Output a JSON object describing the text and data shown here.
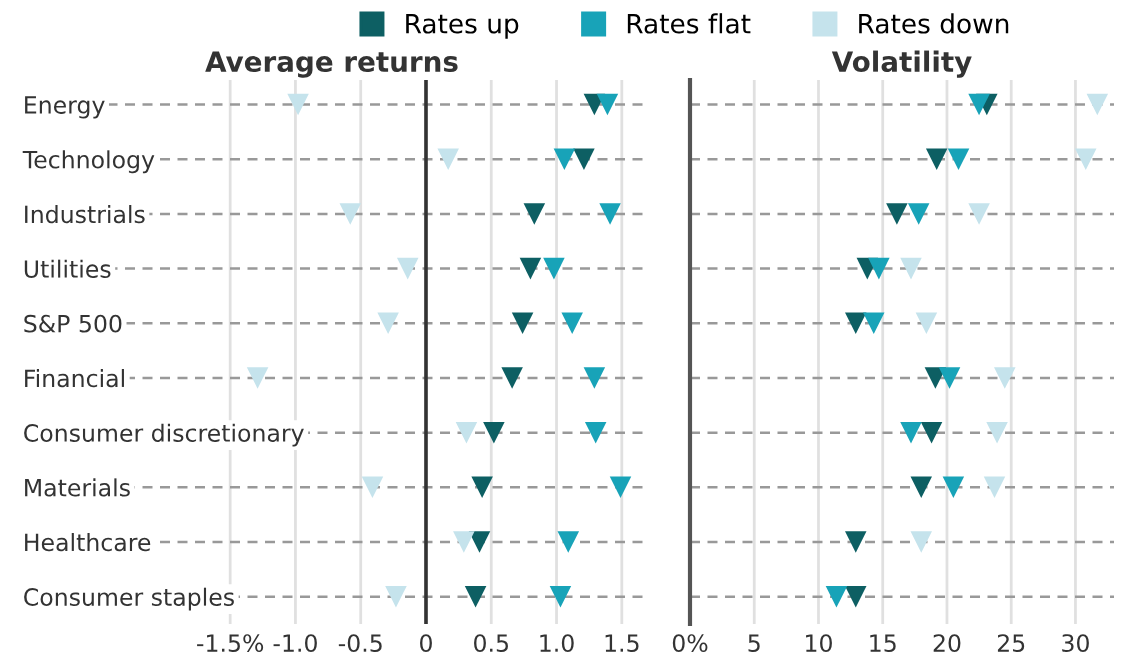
{
  "chart_data": [
    {
      "type": "scatter",
      "title": "Average returns",
      "orientation": "horizontal",
      "categories": [
        "Energy",
        "Technology",
        "Industrials",
        "Utilities",
        "S&P 500",
        "Financial",
        "Consumer discretionary",
        "Materials",
        "Healthcare",
        "Consumer staples"
      ],
      "series": [
        {
          "name": "Rates up",
          "color": "#0d5f63",
          "values": [
            1.29,
            1.21,
            0.83,
            0.8,
            0.74,
            0.66,
            0.52,
            0.43,
            0.41,
            0.38
          ]
        },
        {
          "name": "Rates flat",
          "color": "#18a3b8",
          "values": [
            1.39,
            1.06,
            1.41,
            0.98,
            1.12,
            1.29,
            1.3,
            1.49,
            1.09,
            1.03
          ]
        },
        {
          "name": "Rates down",
          "color": "#c5e3ec",
          "values": [
            -0.98,
            0.17,
            -0.58,
            -0.14,
            -0.29,
            -1.29,
            0.31,
            -0.41,
            0.29,
            -0.23
          ]
        }
      ],
      "xlim": [
        -3.11,
        1.67
      ],
      "xticks": [
        {
          "value": -1.5,
          "label": "-1.5%"
        },
        {
          "value": -1.0,
          "label": "-1.0"
        },
        {
          "value": -0.5,
          "label": "-0.5"
        },
        0,
        0.5,
        {
          "value": 1.0,
          "label": "1.0"
        },
        1.5
      ],
      "ref_lines": [
        {
          "axis": "x",
          "value": 0,
          "color": "#333333"
        }
      ],
      "marker": "triangle",
      "grid": true,
      "legend": "top"
    },
    {
      "type": "scatter",
      "title": "Volatility",
      "orientation": "horizontal",
      "categories": [
        null,
        null,
        null,
        null,
        null,
        null,
        null,
        null,
        null,
        null
      ],
      "series": [
        {
          "color": "#0d5f63",
          "values": [
            23.1,
            19.2,
            16.1,
            13.8,
            12.9,
            19.1,
            18.8,
            18.0,
            12.9,
            12.9
          ]
        },
        {
          "color": "#18a3b8",
          "values": [
            22.5,
            20.9,
            17.8,
            14.7,
            14.3,
            20.2,
            17.2,
            20.5,
            null,
            11.4
          ]
        },
        {
          "color": "#c5e3ec",
          "values": [
            31.7,
            30.8,
            22.5,
            17.2,
            18.4,
            24.5,
            23.9,
            23.7,
            18.0,
            null
          ]
        }
      ],
      "xlim": [
        0,
        33
      ],
      "xticks": [
        {
          "value": 0,
          "label": "0%"
        },
        5,
        10,
        15,
        20,
        25,
        30
      ],
      "marker": "triangle",
      "grid": true,
      "tick_labels": "x"
    }
  ]
}
